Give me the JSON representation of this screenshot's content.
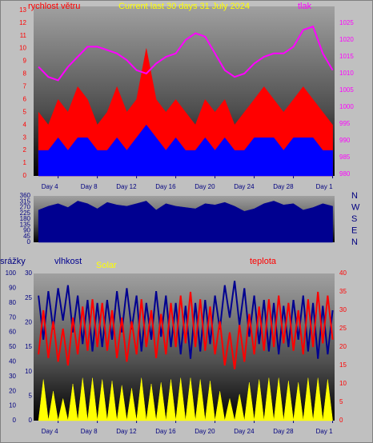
{
  "chart_data": [
    {
      "type": "line",
      "title": "Current last 30 days 31 July 2024",
      "x": [
        2,
        3,
        4,
        5,
        6,
        7,
        8,
        9,
        10,
        11,
        12,
        13,
        14,
        15,
        16,
        17,
        18,
        19,
        20,
        21,
        22,
        23,
        24,
        25,
        26,
        27,
        28,
        29,
        30,
        31,
        32
      ],
      "xlim": [
        1.5,
        32.2
      ],
      "xticks": [
        {
          "value": 4,
          "label": "Day 4"
        },
        {
          "value": 8,
          "label": "Day 8"
        },
        {
          "value": 12,
          "label": "Day 12"
        },
        {
          "value": 16,
          "label": "Day 16"
        },
        {
          "value": 20,
          "label": "Day 20"
        },
        {
          "value": 24,
          "label": "Day 24"
        },
        {
          "value": 28,
          "label": "Day 28"
        },
        {
          "value": 32,
          "label": "Day 1"
        }
      ],
      "ylim": [
        0,
        13.3
      ],
      "yticks": [
        0,
        1,
        2,
        3,
        4,
        5,
        6,
        7,
        8,
        9,
        10,
        11,
        12,
        13
      ],
      "ytick_color": "#ff0000",
      "y2lim": [
        979.5,
        1030
      ],
      "y2ticks": [
        980,
        985,
        990,
        995,
        1000,
        1005,
        1010,
        1015,
        1020,
        1025
      ],
      "y2tick_color": "#ff00ff",
      "series": [
        {
          "name": "rychlost větru",
          "color": "#ff0000",
          "area": true,
          "axis": "y",
          "values": [
            5,
            4,
            6,
            5,
            7,
            6,
            4,
            5,
            7,
            5,
            6,
            10,
            6,
            5,
            6,
            5,
            4,
            6,
            5,
            6,
            4,
            5,
            6,
            7,
            6,
            5,
            6,
            7,
            6,
            5,
            4
          ]
        },
        {
          "color": "#0000ff",
          "area": true,
          "axis": "y",
          "values": [
            2,
            2,
            3,
            2,
            3,
            3,
            2,
            2,
            3,
            2,
            3,
            4,
            3,
            2,
            3,
            2,
            2,
            3,
            2,
            3,
            2,
            2,
            3,
            3,
            3,
            2,
            3,
            3,
            3,
            2,
            2
          ]
        },
        {
          "name": "tlak",
          "color": "#ff00ff",
          "area": false,
          "axis": "y2",
          "values": [
            1012,
            1009,
            1008,
            1012,
            1015,
            1018,
            1018,
            1017,
            1016,
            1014,
            1011,
            1010,
            1013,
            1015,
            1016,
            1020,
            1022,
            1021,
            1016,
            1011,
            1009,
            1010,
            1013,
            1015,
            1016,
            1016,
            1018,
            1023,
            1024,
            1016,
            1011
          ]
        }
      ]
    },
    {
      "type": "line",
      "x": [
        2,
        3,
        4,
        5,
        6,
        7,
        8,
        9,
        10,
        11,
        12,
        13,
        14,
        15,
        16,
        17,
        18,
        19,
        20,
        21,
        22,
        23,
        24,
        25,
        26,
        27,
        28,
        29,
        30,
        31,
        32
      ],
      "xlim": [
        1.5,
        32.2
      ],
      "ylim": [
        0,
        360
      ],
      "yticks": [
        0,
        45,
        90,
        135,
        180,
        225,
        270,
        315,
        360
      ],
      "ytick_color": "#000080",
      "direction_labels": [
        {
          "value": 360,
          "label": "N"
        },
        {
          "value": 270,
          "label": "W"
        },
        {
          "value": 180,
          "label": "S"
        },
        {
          "value": 90,
          "label": "E"
        },
        {
          "value": 0,
          "label": "N"
        }
      ],
      "series": [
        {
          "color": "#000090",
          "area": true,
          "axis": "y",
          "values": [
            250,
            280,
            300,
            270,
            320,
            300,
            260,
            310,
            290,
            280,
            300,
            320,
            250,
            300,
            280,
            270,
            260,
            300,
            290,
            310,
            280,
            240,
            260,
            300,
            320,
            290,
            300,
            250,
            270,
            300,
            280
          ]
        }
      ]
    },
    {
      "type": "line",
      "x": [
        2,
        2.5,
        3,
        3.5,
        4,
        4.5,
        5,
        5.5,
        6,
        6.5,
        7,
        7.5,
        8,
        8.5,
        9,
        9.5,
        10,
        10.5,
        11,
        11.5,
        12,
        12.5,
        13,
        13.5,
        14,
        14.5,
        15,
        15.5,
        16,
        16.5,
        17,
        17.5,
        18,
        18.5,
        19,
        19.5,
        20,
        20.5,
        21,
        21.5,
        22,
        22.5,
        23,
        23.5,
        24,
        24.5,
        25,
        25.5,
        26,
        26.5,
        27,
        27.5,
        28,
        28.5,
        29,
        29.5,
        30,
        30.5,
        31,
        31.5,
        32
      ],
      "xlim": [
        1.5,
        32.2
      ],
      "xticks": [
        {
          "value": 4,
          "label": "Day 4"
        },
        {
          "value": 8,
          "label": "Day 8"
        },
        {
          "value": 12,
          "label": "Day 12"
        },
        {
          "value": 16,
          "label": "Day 16"
        },
        {
          "value": 20,
          "label": "Day 20"
        },
        {
          "value": 24,
          "label": "Day 24"
        },
        {
          "value": 28,
          "label": "Day 28"
        },
        {
          "value": 32,
          "label": "Day 1"
        }
      ],
      "ylim": [
        0,
        100
      ],
      "yticks": [
        0,
        10,
        20,
        30,
        40,
        50,
        60,
        70,
        80,
        90,
        100
      ],
      "ytick_color": "#000080",
      "y3label": "srážky",
      "y3lim": [
        0,
        30
      ],
      "y3ticks": [
        0,
        5,
        10,
        15,
        20,
        25,
        30
      ],
      "y3tick_color": "#000080",
      "y2lim": [
        0,
        40
      ],
      "y2ticks": [
        0,
        5,
        10,
        15,
        20,
        25,
        30,
        35,
        40
      ],
      "y2tick_color": "#ff0000",
      "series": [
        {
          "name": "vlhkost",
          "color": "#000090",
          "area": false,
          "axis": "y",
          "values": [
            85,
            55,
            88,
            62,
            90,
            68,
            92,
            60,
            85,
            52,
            82,
            47,
            80,
            50,
            82,
            55,
            88,
            60,
            90,
            62,
            85,
            47,
            80,
            55,
            88,
            57,
            85,
            50,
            80,
            45,
            78,
            42,
            80,
            47,
            82,
            52,
            85,
            62,
            92,
            70,
            95,
            65,
            90,
            57,
            85,
            52,
            82,
            47,
            80,
            45,
            78,
            50,
            82,
            55,
            85,
            47,
            80,
            42,
            78,
            45,
            75
          ]
        },
        {
          "name": "Solar",
          "color": "#ffff00",
          "area": true,
          "axis": "y",
          "values": [
            0,
            28,
            0,
            20,
            0,
            15,
            0,
            25,
            0,
            29,
            0,
            29,
            0,
            28,
            0,
            27,
            0,
            24,
            0,
            22,
            0,
            29,
            0,
            25,
            0,
            26,
            0,
            28,
            0,
            29,
            0,
            29,
            0,
            28,
            0,
            27,
            0,
            20,
            0,
            15,
            0,
            18,
            0,
            26,
            0,
            28,
            0,
            29,
            0,
            29,
            0,
            27,
            0,
            26,
            0,
            29,
            0,
            29,
            0,
            28,
            0
          ]
        },
        {
          "name": "teplota",
          "color": "#ff0000",
          "area": false,
          "axis": "y2",
          "values": [
            18,
            30,
            17,
            27,
            16,
            25,
            15,
            28,
            18,
            31,
            19,
            33,
            20,
            32,
            19,
            30,
            17,
            28,
            16,
            27,
            18,
            33,
            20,
            30,
            17,
            29,
            18,
            32,
            20,
            34,
            21,
            35,
            20,
            33,
            19,
            31,
            18,
            27,
            15,
            24,
            14,
            26,
            16,
            29,
            18,
            31,
            19,
            33,
            20,
            34,
            21,
            32,
            19,
            30,
            18,
            33,
            20,
            35,
            21,
            34,
            22
          ]
        }
      ]
    }
  ]
}
